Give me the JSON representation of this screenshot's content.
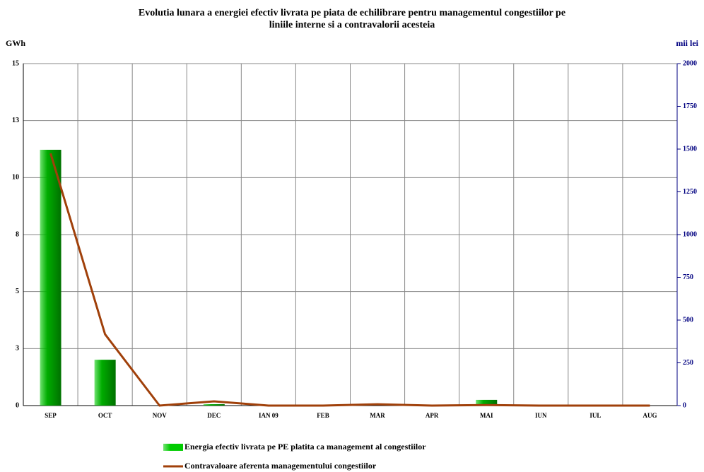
{
  "chart_data": {
    "type": "bar_line",
    "title": "Evolutia lunara a energiei efectiv livrata pe piata de echilibrare pentru managementul congestiilor pe",
    "subtitle": "liniile interne si a contravalorii acesteia",
    "y_label": "GWh",
    "y2_label": "mii lei",
    "categories": [
      "SEP",
      "OCT",
      "NOV",
      "DEC",
      "IAN 09",
      "FEB",
      "MAR",
      "APR",
      "MAI",
      "IUN",
      "IUL",
      "AUG"
    ],
    "series": [
      {
        "name": "Energia efectiv livrata pe PE platita ca management al congestiilor",
        "type": "bar",
        "color": "#00cc00",
        "values": [
          11.22,
          2.01,
          0,
          0.06,
          0,
          0,
          0,
          0,
          0.25,
          0,
          0,
          0
        ]
      },
      {
        "name": "Contravaloare aferenta managementului congestiilor",
        "type": "line",
        "axis": "y2",
        "color": "#a0400a",
        "values": [
          1475,
          417,
          0,
          25,
          0,
          0,
          8,
          0,
          3,
          0,
          0,
          0
        ]
      }
    ],
    "ylim": [
      0,
      15
    ],
    "yticks": [
      0,
      {
        "value": 2.5,
        "label": "3"
      },
      5,
      {
        "value": 7.5,
        "label": "8"
      },
      10,
      {
        "value": 12.5,
        "label": "13"
      },
      15
    ],
    "y2lim": [
      0,
      2000
    ],
    "y2ticks": [
      0,
      250,
      500,
      750,
      1000,
      1250,
      1500,
      1750,
      2000
    ],
    "grid": true
  }
}
